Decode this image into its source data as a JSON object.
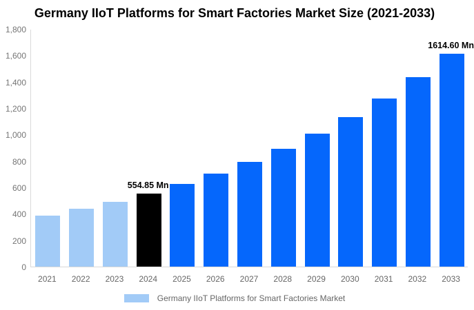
{
  "title": "Germany IIoT Platforms for Smart Factories Market Size (2021-2033)",
  "legend": {
    "label": "Germany IIoT Platforms for Smart Factories Market",
    "swatch_color": "#a2cbf7"
  },
  "colors": {
    "historical": "#a2cbf7",
    "base_year": "#000000",
    "forecast": "#0567fc",
    "axis_line": "#d9d9d9",
    "y_tick_text": "#757575",
    "x_tick_text": "#666666"
  },
  "chart_data": {
    "type": "bar",
    "title": "Germany IIoT Platforms for Smart Factories Market Size (2021-2033)",
    "categories": [
      "2021",
      "2022",
      "2023",
      "2024",
      "2025",
      "2026",
      "2027",
      "2028",
      "2029",
      "2030",
      "2031",
      "2032",
      "2033"
    ],
    "values": [
      388,
      437,
      493,
      554.85,
      625,
      704,
      792,
      893,
      1005,
      1130,
      1274,
      1434,
      1614.6
    ],
    "unit": "Mn",
    "bar_groups": [
      "historical",
      "historical",
      "historical",
      "base_year",
      "forecast",
      "forecast",
      "forecast",
      "forecast",
      "forecast",
      "forecast",
      "forecast",
      "forecast",
      "forecast"
    ],
    "annotations": [
      {
        "category": "2024",
        "text": "554.85 Mn"
      },
      {
        "category": "2033",
        "text": "1614.60 Mn"
      }
    ],
    "xlabel": "",
    "ylabel": "",
    "ylim": [
      0,
      1800
    ],
    "y_tick_labels": [
      "0",
      "200",
      "400",
      "600",
      "800",
      "1,000",
      "1,200",
      "1,400",
      "1,600",
      "1,800"
    ],
    "grid": false,
    "legend_position": "bottom",
    "legend_entries": [
      "Germany IIoT Platforms for Smart Factories Market"
    ]
  }
}
